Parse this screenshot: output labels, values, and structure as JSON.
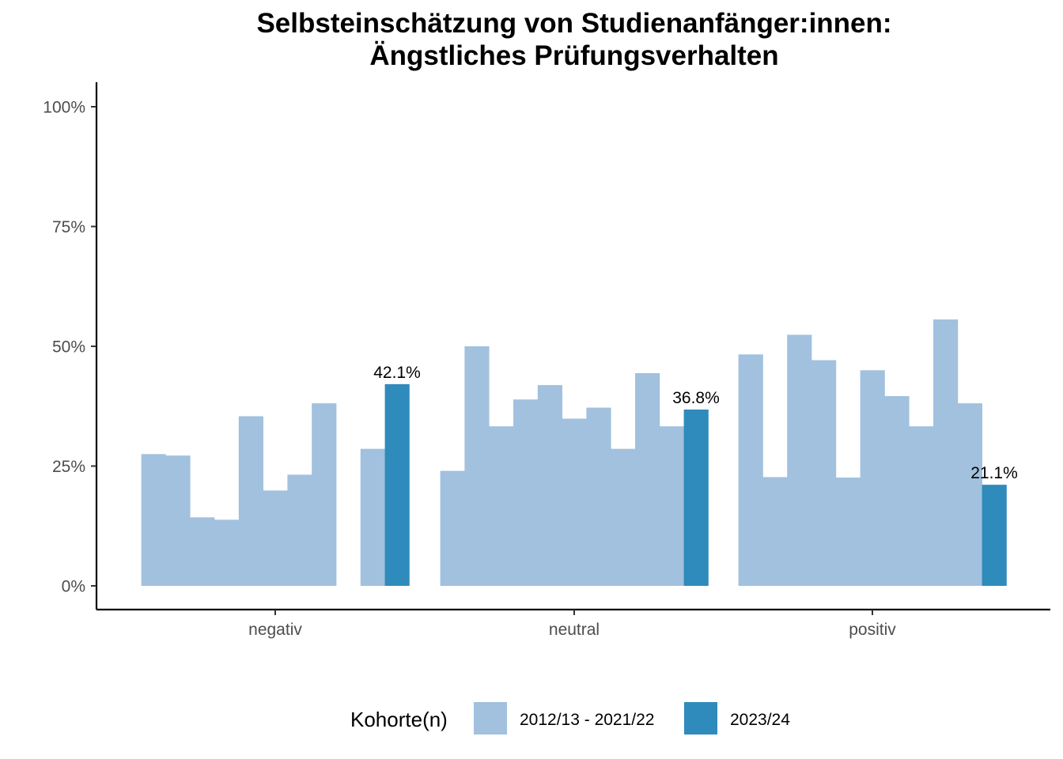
{
  "chart_data": {
    "type": "bar",
    "title": [
      "Selbsteinschätzung von Studienanfänger:innen:",
      "Ängstliches Prüfungsverhalten"
    ],
    "xlabel": "",
    "ylabel": "",
    "ylim": [
      0,
      1
    ],
    "y_ticks": [
      0,
      0.25,
      0.5,
      0.75,
      1
    ],
    "y_tick_labels": [
      "0%",
      "25%",
      "50%",
      "75%",
      "100%"
    ],
    "grid": false,
    "legend_position": "bottom",
    "legend_title": "Kohorte(n)",
    "categories": [
      "negativ",
      "neutral",
      "positiv"
    ],
    "colors": {
      "2012/13 - 2021/22": "#a1c1de",
      "2023/24": "#2f8bbb"
    },
    "series": [
      {
        "name": "2012/13 - 2021/22",
        "cohort_count": 10
      },
      {
        "name": "2023/24",
        "cohort_count": 1
      }
    ],
    "groups": [
      {
        "category": "negativ",
        "bars": [
          {
            "series": "2012/13 - 2021/22",
            "value": 0.275
          },
          {
            "series": "2012/13 - 2021/22",
            "value": 0.272
          },
          {
            "series": "2012/13 - 2021/22",
            "value": 0.143
          },
          {
            "series": "2012/13 - 2021/22",
            "value": 0.138
          },
          {
            "series": "2012/13 - 2021/22",
            "value": 0.354
          },
          {
            "series": "2012/13 - 2021/22",
            "value": 0.199
          },
          {
            "series": "2012/13 - 2021/22",
            "value": 0.232
          },
          {
            "series": "2012/13 - 2021/22",
            "value": 0.381
          },
          {
            "series": "2012/13 - 2021/22",
            "value": null
          },
          {
            "series": "2012/13 - 2021/22",
            "value": 0.286
          },
          {
            "series": "2023/24",
            "value": 0.421,
            "label": "42.1%"
          }
        ]
      },
      {
        "category": "neutral",
        "bars": [
          {
            "series": "2012/13 - 2021/22",
            "value": 0.24
          },
          {
            "series": "2012/13 - 2021/22",
            "value": 0.5
          },
          {
            "series": "2012/13 - 2021/22",
            "value": 0.333
          },
          {
            "series": "2012/13 - 2021/22",
            "value": 0.389
          },
          {
            "series": "2012/13 - 2021/22",
            "value": 0.419
          },
          {
            "series": "2012/13 - 2021/22",
            "value": 0.349
          },
          {
            "series": "2012/13 - 2021/22",
            "value": 0.372
          },
          {
            "series": "2012/13 - 2021/22",
            "value": 0.286
          },
          {
            "series": "2012/13 - 2021/22",
            "value": 0.444
          },
          {
            "series": "2012/13 - 2021/22",
            "value": 0.333
          },
          {
            "series": "2023/24",
            "value": 0.368,
            "label": "36.8%"
          }
        ]
      },
      {
        "category": "positiv",
        "bars": [
          {
            "series": "2012/13 - 2021/22",
            "value": 0.483
          },
          {
            "series": "2012/13 - 2021/22",
            "value": 0.227
          },
          {
            "series": "2012/13 - 2021/22",
            "value": 0.524
          },
          {
            "series": "2012/13 - 2021/22",
            "value": 0.471
          },
          {
            "series": "2012/13 - 2021/22",
            "value": 0.226
          },
          {
            "series": "2012/13 - 2021/22",
            "value": 0.45
          },
          {
            "series": "2012/13 - 2021/22",
            "value": 0.396
          },
          {
            "series": "2012/13 - 2021/22",
            "value": 0.333
          },
          {
            "series": "2012/13 - 2021/22",
            "value": 0.556
          },
          {
            "series": "2012/13 - 2021/22",
            "value": 0.381
          },
          {
            "series": "2023/24",
            "value": 0.211,
            "label": "21.1%"
          }
        ]
      }
    ]
  }
}
